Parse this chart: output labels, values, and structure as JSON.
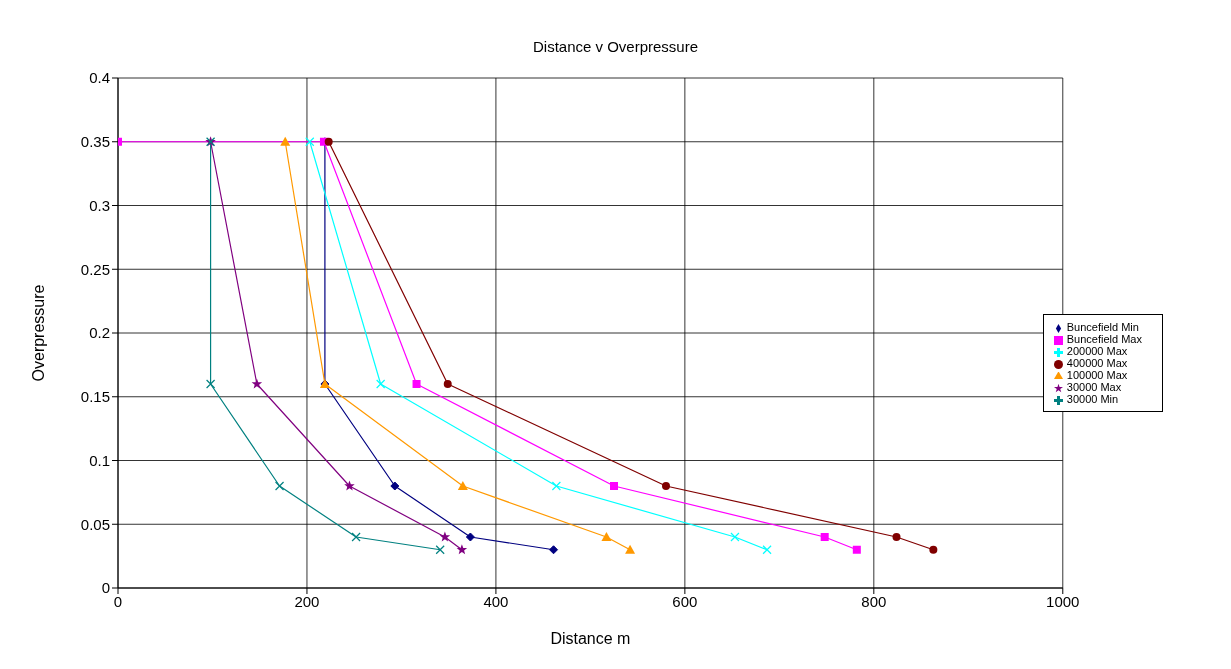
{
  "chart_data": {
    "type": "line",
    "title": "Distance v Overpressure",
    "xlabel": "Distance m",
    "ylabel": "Overpressure",
    "xlim": [
      0,
      1000
    ],
    "xticks": [
      0,
      200,
      400,
      600,
      800,
      1000
    ],
    "ylim": [
      0,
      0.4
    ],
    "yticks": [
      0,
      0.05,
      0.1,
      0.15,
      0.2,
      0.25,
      0.3,
      0.35,
      0.4
    ],
    "grid": true,
    "legend": "right",
    "line_style": "solid",
    "series": [
      {
        "name": "Buncefield Min",
        "color": "#000080",
        "marker": "diamond",
        "x": [
          219,
          219,
          293,
          373,
          461
        ],
        "values": [
          0.35,
          0.16,
          0.08,
          0.04,
          0.03
        ]
      },
      {
        "name": "Buncefield Max",
        "color": "#ff00ff",
        "marker": "square",
        "x": [
          0,
          218,
          316,
          525,
          748,
          782
        ],
        "values": [
          0.35,
          0.35,
          0.16,
          0.08,
          0.04,
          0.03
        ]
      },
      {
        "name": "200000 Max",
        "color": "#00ffff",
        "marker": "cross",
        "x": [
          203,
          278,
          464,
          653,
          687
        ],
        "values": [
          0.35,
          0.16,
          0.08,
          0.04,
          0.03
        ]
      },
      {
        "name": "400000 Max",
        "color": "#800000",
        "marker": "circle",
        "x": [
          223,
          349,
          580,
          824,
          863
        ],
        "values": [
          0.35,
          0.16,
          0.08,
          0.04,
          0.03
        ]
      },
      {
        "name": "100000 Max",
        "color": "#ff9900",
        "marker": "triangle",
        "x": [
          177,
          219,
          365,
          517,
          542
        ],
        "values": [
          0.35,
          0.16,
          0.08,
          0.04,
          0.03
        ]
      },
      {
        "name": "30000 Max",
        "color": "#800080",
        "marker": "star",
        "x": [
          98,
          147,
          245,
          346,
          364
        ],
        "values": [
          0.35,
          0.16,
          0.08,
          0.04,
          0.03
        ]
      },
      {
        "name": "30000 Min",
        "color": "#008080",
        "marker": "cross",
        "x": [
          98,
          98,
          171,
          252,
          341
        ],
        "values": [
          0.35,
          0.16,
          0.08,
          0.04,
          0.03
        ]
      }
    ]
  }
}
